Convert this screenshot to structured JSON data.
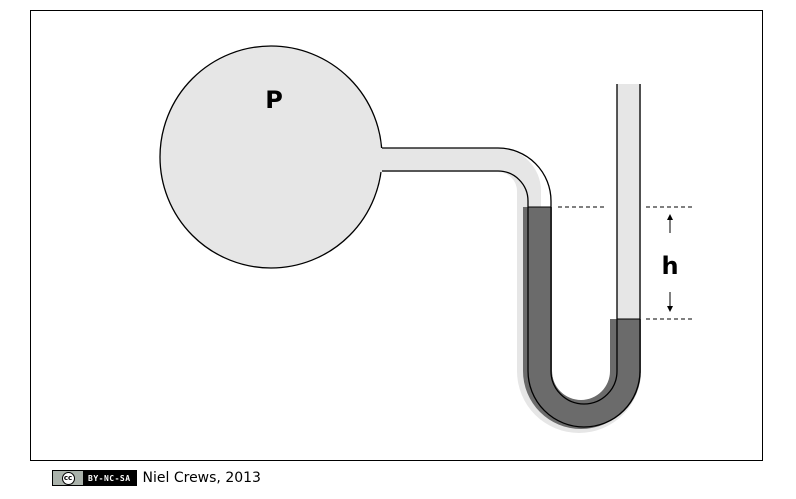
{
  "diagram": {
    "pressure_label": "P",
    "height_label": "h",
    "colors": {
      "vessel_fill": "#e6e6e6",
      "fluid_fill": "#6b6b6b",
      "outline": "#000000"
    }
  },
  "footer": {
    "cc_icon": "cc",
    "license": "BY-NC-SA",
    "credit": "Niel Crews, 2013"
  }
}
